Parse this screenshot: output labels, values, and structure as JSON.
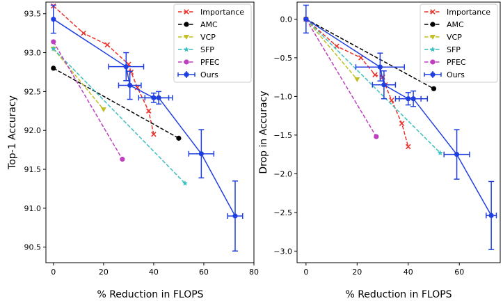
{
  "colors": {
    "Importance": "#e8342c",
    "AMC": "#000000",
    "VCP": "#bfbf1f",
    "SFP": "#3bbfbf",
    "PFEC": "#bf3fbf",
    "Ours": "#1f3fe0"
  },
  "chart_data": [
    {
      "type": "line",
      "xlabel": "% Reduction in FLOPS",
      "ylabel": "Top-1 Accuracy",
      "xlim": [
        -3,
        80
      ],
      "ylim": [
        90.3,
        93.65
      ],
      "xticks": [
        0,
        20,
        40,
        60,
        80
      ],
      "yticks": [
        90.5,
        91.0,
        91.5,
        92.0,
        92.5,
        93.0,
        93.5
      ],
      "ytick_labels": [
        "90.5",
        "91.0",
        "91.5",
        "92.0",
        "92.5",
        "93.0",
        "93.5"
      ],
      "legend_position": "top-right",
      "series": [
        {
          "name": "Importance",
          "style": "dashed",
          "marker": "x",
          "x": [
            0,
            12,
            21.5,
            30,
            31,
            33.5,
            38,
            40
          ],
          "y": [
            93.6,
            93.25,
            93.1,
            92.85,
            92.75,
            92.55,
            92.25,
            91.95
          ]
        },
        {
          "name": "AMC",
          "style": "dashed",
          "marker": "circle",
          "x": [
            0,
            50
          ],
          "y": [
            92.8,
            91.9
          ]
        },
        {
          "name": "VCP",
          "style": "dashed",
          "marker": "triangle-down",
          "x": [
            0,
            20
          ],
          "y": [
            93.05,
            92.27
          ]
        },
        {
          "name": "SFP",
          "style": "dashed",
          "marker": "star",
          "x": [
            0,
            52.5
          ],
          "y": [
            93.05,
            91.32
          ]
        },
        {
          "name": "PFEC",
          "style": "dashed",
          "marker": "circle",
          "x": [
            0,
            27.5
          ],
          "y": [
            93.14,
            91.63
          ]
        },
        {
          "name": "Ours",
          "style": "solid",
          "marker": "circle",
          "errorbars": true,
          "x": [
            0,
            29,
            30.5,
            40,
            42,
            59,
            72.5
          ],
          "y": [
            93.43,
            92.82,
            92.58,
            92.42,
            92.42,
            91.7,
            90.9
          ],
          "xerr": [
            0,
            7,
            4.5,
            6,
            5.5,
            5,
            3
          ],
          "yerr": [
            0.18,
            0.18,
            0.18,
            0.06,
            0.08,
            0.31,
            0.45
          ]
        }
      ]
    },
    {
      "type": "line",
      "xlabel": "% Reduction in FLOPS",
      "ylabel": "Drop in Accuracy",
      "xlim": [
        -3.5,
        76
      ],
      "ylim": [
        -3.15,
        0.22
      ],
      "xticks": [
        0,
        20,
        40,
        60
      ],
      "yticks": [
        -3.0,
        -2.5,
        -2.0,
        -1.5,
        -1.0,
        -0.5,
        0.0
      ],
      "ytick_labels": [
        "−3.0",
        "−2.5",
        "−2.0",
        "−1.5",
        "−1.0",
        "−0.5",
        "0.0"
      ],
      "legend_position": "top-right",
      "series": [
        {
          "name": "Importance",
          "style": "dashed",
          "marker": "x",
          "x": [
            0,
            12,
            21.5,
            27,
            30,
            31,
            33.5,
            37.5,
            40
          ],
          "y": [
            0.0,
            -0.35,
            -0.5,
            -0.72,
            -0.75,
            -0.85,
            -1.05,
            -1.35,
            -1.65
          ]
        },
        {
          "name": "AMC",
          "style": "dashed",
          "marker": "circle",
          "x": [
            0,
            50
          ],
          "y": [
            0.0,
            -0.9
          ]
        },
        {
          "name": "VCP",
          "style": "dashed",
          "marker": "triangle-down",
          "x": [
            0,
            20
          ],
          "y": [
            0.0,
            -0.78
          ]
        },
        {
          "name": "SFP",
          "style": "dashed",
          "marker": "star",
          "x": [
            0,
            52.5
          ],
          "y": [
            0.0,
            -1.73
          ]
        },
        {
          "name": "PFEC",
          "style": "dashed",
          "marker": "circle",
          "x": [
            0,
            27.5
          ],
          "y": [
            0.0,
            -1.52
          ]
        },
        {
          "name": "Ours",
          "style": "solid",
          "marker": "circle",
          "errorbars": true,
          "x": [
            0,
            29,
            30.5,
            40,
            42,
            59,
            72.5
          ],
          "y": [
            0.0,
            -0.62,
            -0.85,
            -1.03,
            -1.03,
            -1.75,
            -2.54
          ],
          "xerr": [
            0,
            9.5,
            4.5,
            5,
            5.5,
            5,
            2
          ],
          "yerr": [
            0.18,
            0.18,
            0.18,
            0.08,
            0.1,
            0.32,
            0.44
          ]
        }
      ]
    }
  ]
}
